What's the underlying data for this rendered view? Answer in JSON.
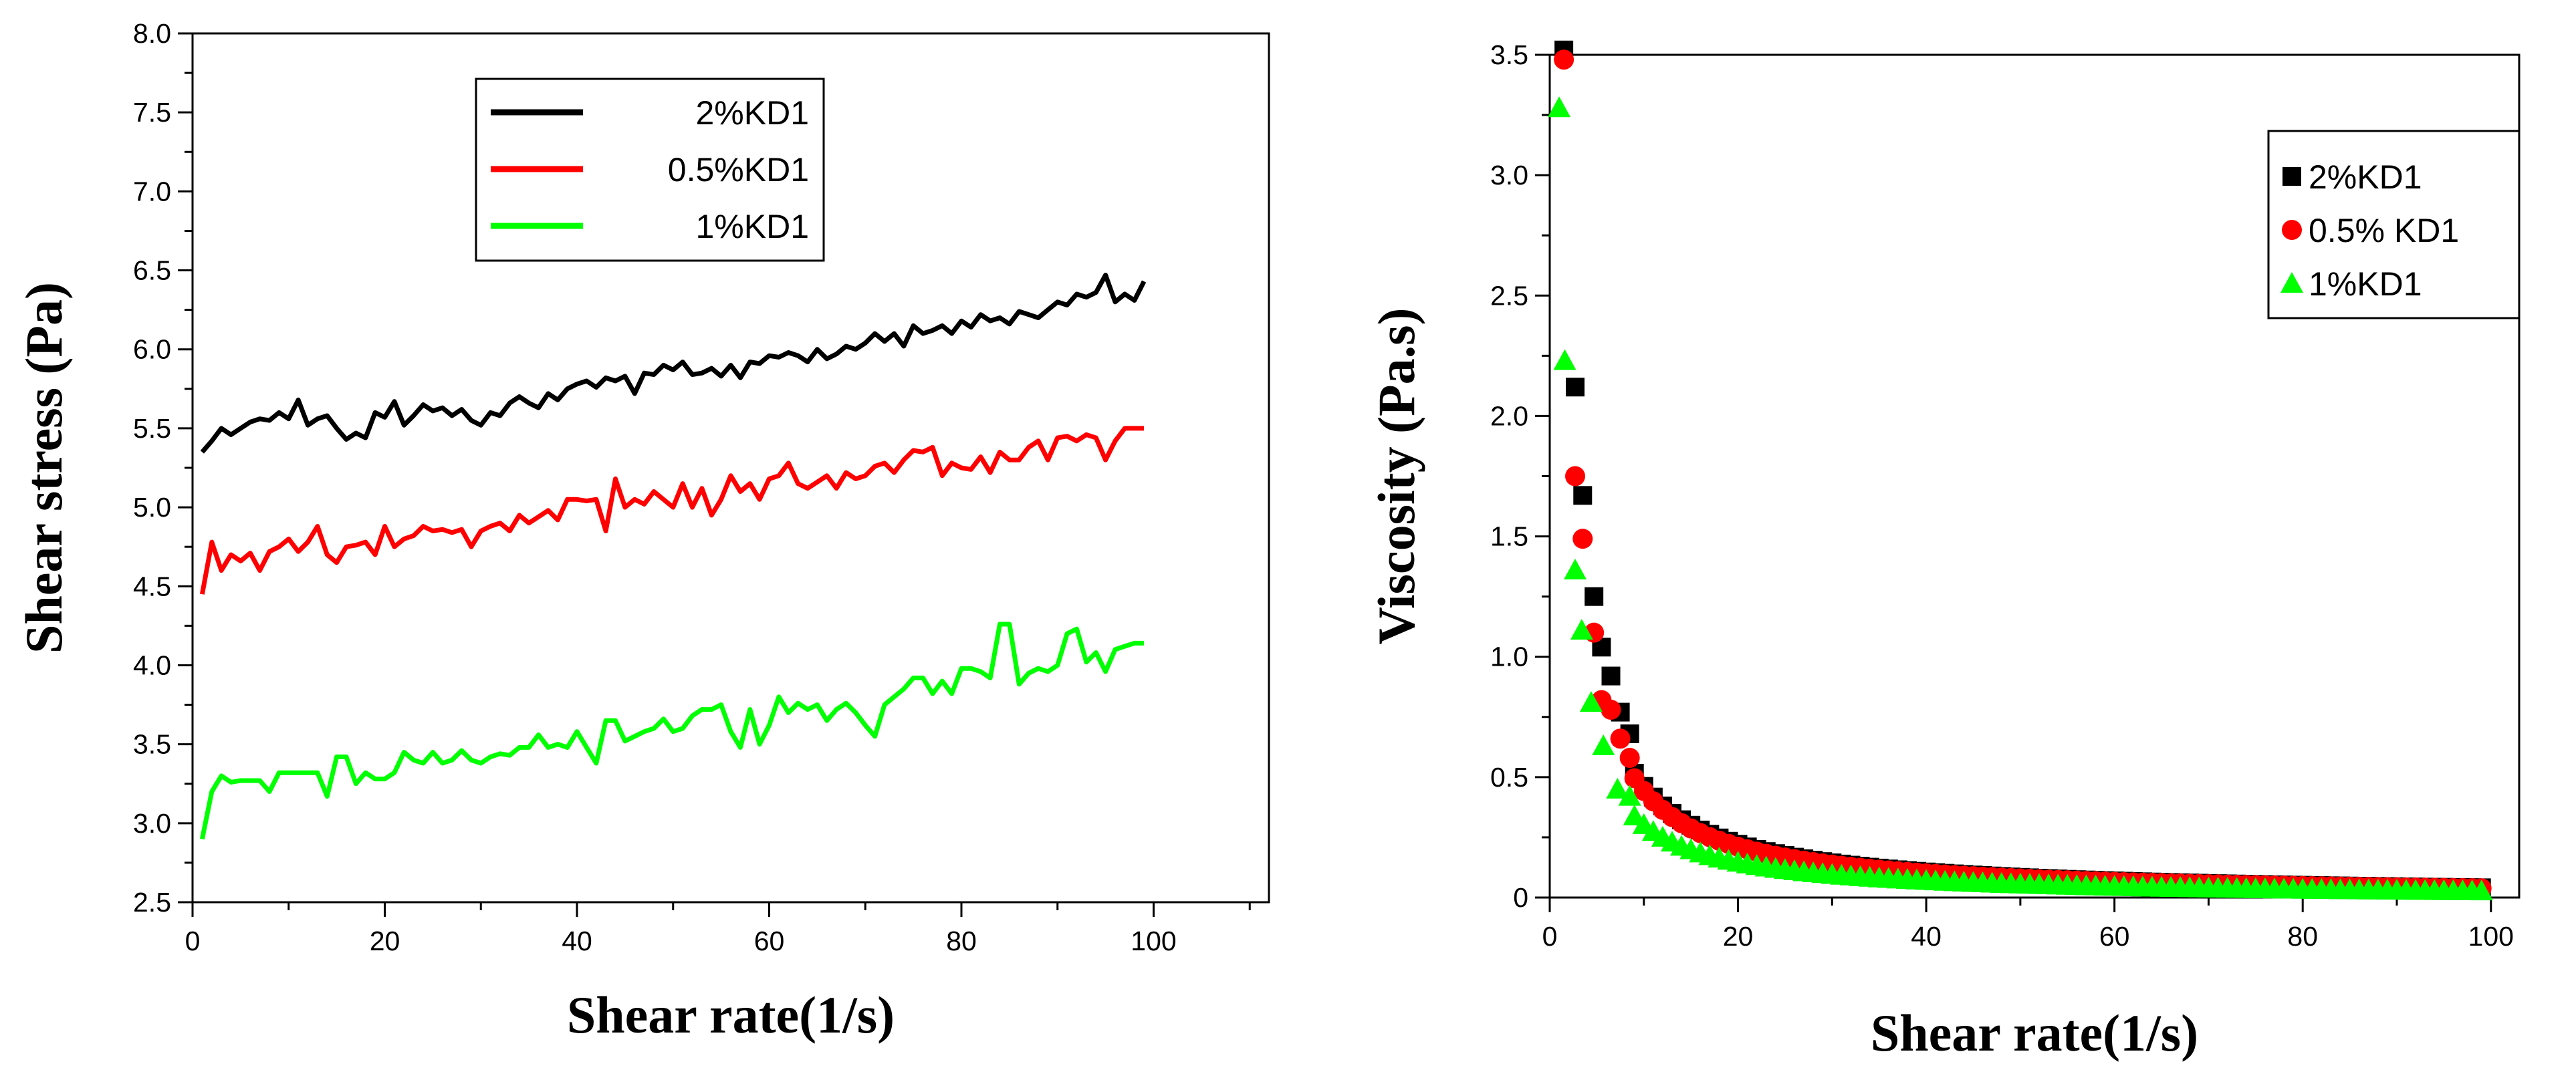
{
  "chart_data": [
    {
      "type": "line",
      "title": "",
      "xlabel": "Shear rate(1/s)",
      "ylabel": "Shear stress (Pa)",
      "xlim": [
        0,
        112
      ],
      "ylim": [
        2.5,
        8.0
      ],
      "xticks": [
        "0",
        "20",
        "40",
        "60",
        "80",
        "100"
      ],
      "yticks": [
        "2.5",
        "3.0",
        "3.5",
        "4.0",
        "4.5",
        "5.0",
        "5.5",
        "6.0",
        "6.5",
        "7.0",
        "7.5",
        "8.0"
      ],
      "legend_position": "top-center",
      "series": [
        {
          "name": "2%KD1",
          "color": "#000000",
          "x": [
            1,
            2,
            3,
            4,
            5,
            6,
            7,
            8,
            9,
            10,
            11,
            12,
            13,
            14,
            15,
            16,
            17,
            18,
            19,
            20,
            21,
            22,
            23,
            24,
            25,
            26,
            27,
            28,
            29,
            30,
            31,
            32,
            33,
            34,
            35,
            36,
            37,
            38,
            39,
            40,
            41,
            42,
            43,
            44,
            45,
            46,
            47,
            48,
            49,
            50,
            51,
            52,
            53,
            54,
            55,
            56,
            57,
            58,
            59,
            60,
            61,
            62,
            63,
            64,
            65,
            66,
            67,
            68,
            69,
            70,
            71,
            72,
            73,
            74,
            75,
            76,
            77,
            78,
            79,
            80,
            81,
            82,
            83,
            84,
            85,
            86,
            87,
            88,
            89,
            90,
            91,
            92,
            93,
            94,
            95,
            96,
            97,
            98,
            99
          ],
          "values": [
            5.35,
            5.42,
            5.5,
            5.46,
            5.5,
            5.54,
            5.56,
            5.55,
            5.6,
            5.56,
            5.68,
            5.52,
            5.56,
            5.58,
            5.5,
            5.43,
            5.47,
            5.44,
            5.6,
            5.57,
            5.67,
            5.52,
            5.58,
            5.65,
            5.61,
            5.63,
            5.58,
            5.62,
            5.55,
            5.52,
            5.6,
            5.58,
            5.66,
            5.7,
            5.66,
            5.63,
            5.72,
            5.68,
            5.75,
            5.78,
            5.8,
            5.76,
            5.82,
            5.8,
            5.83,
            5.72,
            5.85,
            5.84,
            5.9,
            5.87,
            5.92,
            5.84,
            5.85,
            5.88,
            5.83,
            5.9,
            5.82,
            5.92,
            5.91,
            5.96,
            5.95,
            5.98,
            5.96,
            5.92,
            6.0,
            5.94,
            5.97,
            6.02,
            6.0,
            6.04,
            6.1,
            6.05,
            6.1,
            6.02,
            6.15,
            6.1,
            6.12,
            6.15,
            6.1,
            6.18,
            6.14,
            6.22,
            6.18,
            6.2,
            6.16,
            6.24,
            6.22,
            6.2,
            6.25,
            6.3,
            6.28,
            6.35,
            6.33,
            6.36,
            6.47,
            6.3,
            6.35,
            6.31,
            6.43
          ]
        },
        {
          "name": "0.5%KD1",
          "color": "#ff0000",
          "x": [
            1,
            2,
            3,
            4,
            5,
            6,
            7,
            8,
            9,
            10,
            11,
            12,
            13,
            14,
            15,
            16,
            17,
            18,
            19,
            20,
            21,
            22,
            23,
            24,
            25,
            26,
            27,
            28,
            29,
            30,
            31,
            32,
            33,
            34,
            35,
            36,
            37,
            38,
            39,
            40,
            41,
            42,
            43,
            44,
            45,
            46,
            47,
            48,
            49,
            50,
            51,
            52,
            53,
            54,
            55,
            56,
            57,
            58,
            59,
            60,
            61,
            62,
            63,
            64,
            65,
            66,
            67,
            68,
            69,
            70,
            71,
            72,
            73,
            74,
            75,
            76,
            77,
            78,
            79,
            80,
            81,
            82,
            83,
            84,
            85,
            86,
            87,
            88,
            89,
            90,
            91,
            92,
            93,
            94,
            95,
            96,
            97,
            98,
            99
          ],
          "values": [
            4.45,
            4.78,
            4.6,
            4.7,
            4.66,
            4.71,
            4.6,
            4.72,
            4.75,
            4.8,
            4.72,
            4.78,
            4.88,
            4.7,
            4.65,
            4.75,
            4.76,
            4.78,
            4.7,
            4.88,
            4.75,
            4.8,
            4.82,
            4.88,
            4.85,
            4.86,
            4.84,
            4.86,
            4.75,
            4.85,
            4.88,
            4.9,
            4.85,
            4.95,
            4.9,
            4.94,
            4.98,
            4.92,
            5.05,
            5.05,
            5.04,
            5.05,
            4.85,
            5.18,
            5.0,
            5.05,
            5.02,
            5.1,
            5.05,
            5.0,
            5.15,
            5.0,
            5.12,
            4.95,
            5.05,
            5.2,
            5.1,
            5.15,
            5.05,
            5.18,
            5.2,
            5.28,
            5.15,
            5.12,
            5.16,
            5.2,
            5.12,
            5.22,
            5.18,
            5.2,
            5.26,
            5.28,
            5.22,
            5.3,
            5.36,
            5.35,
            5.38,
            5.2,
            5.28,
            5.25,
            5.24,
            5.32,
            5.22,
            5.35,
            5.3,
            5.3,
            5.38,
            5.42,
            5.3,
            5.44,
            5.45,
            5.42,
            5.46,
            5.44,
            5.3,
            5.42,
            5.5,
            5.5,
            5.5
          ]
        },
        {
          "name": "1%KD1",
          "color": "#00ff00",
          "x": [
            1,
            2,
            3,
            4,
            5,
            6,
            7,
            8,
            9,
            10,
            11,
            12,
            13,
            14,
            15,
            16,
            17,
            18,
            19,
            20,
            21,
            22,
            23,
            24,
            25,
            26,
            27,
            28,
            29,
            30,
            31,
            32,
            33,
            34,
            35,
            36,
            37,
            38,
            39,
            40,
            41,
            42,
            43,
            44,
            45,
            46,
            47,
            48,
            49,
            50,
            51,
            52,
            53,
            54,
            55,
            56,
            57,
            58,
            59,
            60,
            61,
            62,
            63,
            64,
            65,
            66,
            67,
            68,
            69,
            70,
            71,
            72,
            73,
            74,
            75,
            76,
            77,
            78,
            79,
            80,
            81,
            82,
            83,
            84,
            85,
            86,
            87,
            88,
            89,
            90,
            91,
            92,
            93,
            94,
            95,
            96,
            97,
            98,
            99
          ],
          "values": [
            2.9,
            3.2,
            3.3,
            3.26,
            3.27,
            3.27,
            3.27,
            3.2,
            3.32,
            3.32,
            3.32,
            3.32,
            3.32,
            3.17,
            3.42,
            3.42,
            3.25,
            3.32,
            3.28,
            3.28,
            3.32,
            3.45,
            3.4,
            3.38,
            3.45,
            3.38,
            3.4,
            3.46,
            3.4,
            3.38,
            3.42,
            3.44,
            3.43,
            3.48,
            3.48,
            3.56,
            3.48,
            3.5,
            3.48,
            3.58,
            3.48,
            3.38,
            3.65,
            3.65,
            3.52,
            3.55,
            3.58,
            3.6,
            3.66,
            3.58,
            3.6,
            3.68,
            3.72,
            3.72,
            3.75,
            3.58,
            3.48,
            3.72,
            3.5,
            3.62,
            3.8,
            3.7,
            3.76,
            3.72,
            3.75,
            3.65,
            3.72,
            3.76,
            3.7,
            3.62,
            3.55,
            3.75,
            3.8,
            3.85,
            3.92,
            3.92,
            3.82,
            3.9,
            3.82,
            3.98,
            3.98,
            3.96,
            3.92,
            4.26,
            4.26,
            3.88,
            3.95,
            3.98,
            3.96,
            4.0,
            4.2,
            4.23,
            4.02,
            4.08,
            3.96,
            4.1,
            4.12,
            4.14,
            4.14
          ]
        }
      ]
    },
    {
      "type": "scatter",
      "title": "",
      "xlabel": "Shear rate(1/s)",
      "ylabel": "Viscosity (Pa.s)",
      "xlim": [
        0,
        103
      ],
      "ylim": [
        0,
        3.5
      ],
      "xticks": [
        "0",
        "20",
        "40",
        "60",
        "80",
        "100"
      ],
      "yticks": [
        "0",
        "0.5",
        "1.0",
        "1.5",
        "2.0",
        "2.5",
        "3.0",
        "3.5"
      ],
      "legend_position": "top-right",
      "series": [
        {
          "name": "2%KD1",
          "color": "#000000",
          "marker": "square",
          "formula": "viscosity = 5.3 / shear_rate^1.06",
          "x_start": 1.5,
          "x_end": 99,
          "x_step": 1,
          "first_points": [
            [
              1.5,
              3.52
            ],
            [
              2.7,
              2.12
            ],
            [
              3.5,
              1.67
            ],
            [
              4.7,
              1.25
            ],
            [
              5.5,
              1.04
            ],
            [
              6.5,
              0.92
            ],
            [
              7.5,
              0.77
            ],
            [
              8.5,
              0.68
            ]
          ]
        },
        {
          "name": "0.5% KD1",
          "color": "#ff0000",
          "marker": "circle",
          "formula": "viscosity = 5.2 / shear_rate^1.07",
          "x_start": 1.5,
          "x_end": 99,
          "x_step": 1,
          "first_points": [
            [
              1.5,
              3.48
            ],
            [
              2.7,
              1.75
            ],
            [
              3.5,
              1.49
            ],
            [
              4.7,
              1.1
            ],
            [
              5.5,
              0.82
            ],
            [
              6.5,
              0.78
            ],
            [
              7.5,
              0.66
            ],
            [
              8.5,
              0.58
            ]
          ]
        },
        {
          "name": "1%KD1",
          "color": "#00ff00",
          "marker": "triangle",
          "formula": "viscosity = 3.4 / shear_rate^1.05",
          "x_start": 1.0,
          "x_end": 99,
          "x_step": 1,
          "first_points": [
            [
              1.0,
              3.28
            ],
            [
              1.6,
              2.23
            ],
            [
              2.7,
              1.36
            ],
            [
              3.4,
              1.11
            ],
            [
              4.4,
              0.81
            ],
            [
              5.7,
              0.63
            ],
            [
              7.2,
              0.45
            ],
            [
              8.5,
              0.42
            ]
          ]
        }
      ]
    }
  ]
}
